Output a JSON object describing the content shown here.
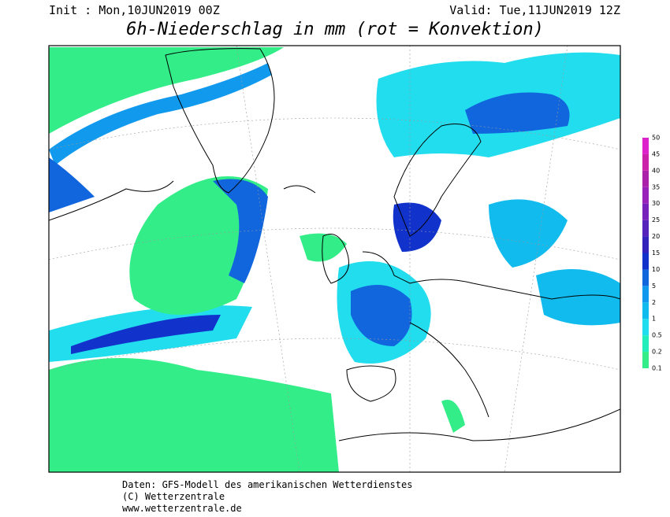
{
  "header": {
    "init": "Init : Mon,10JUN2019 00Z",
    "valid": "Valid: Tue,11JUN2019 12Z",
    "title": "6h-Niederschlag in mm (rot = Konvektion)"
  },
  "legend": {
    "labels": [
      "0.1",
      "0.2",
      "0.5",
      "1",
      "2",
      "5",
      "10",
      "15",
      "20",
      "25",
      "30",
      "35",
      "40",
      "45",
      "50"
    ],
    "colors": [
      "#33ee88",
      "#22eebb",
      "#22ddee",
      "#11bbee",
      "#1199ee",
      "#1166dd",
      "#1133cc",
      "#3322bb",
      "#5522bb",
      "#7722bb",
      "#9922bb",
      "#aa22aa",
      "#cc22aa",
      "#dd22cc"
    ]
  },
  "footer": {
    "line1": "Daten: GFS-Modell des amerikanischen Wetterdienstes",
    "line2": "(C) Wetterzentrale",
    "line3": "www.wetterzentrale.de"
  }
}
